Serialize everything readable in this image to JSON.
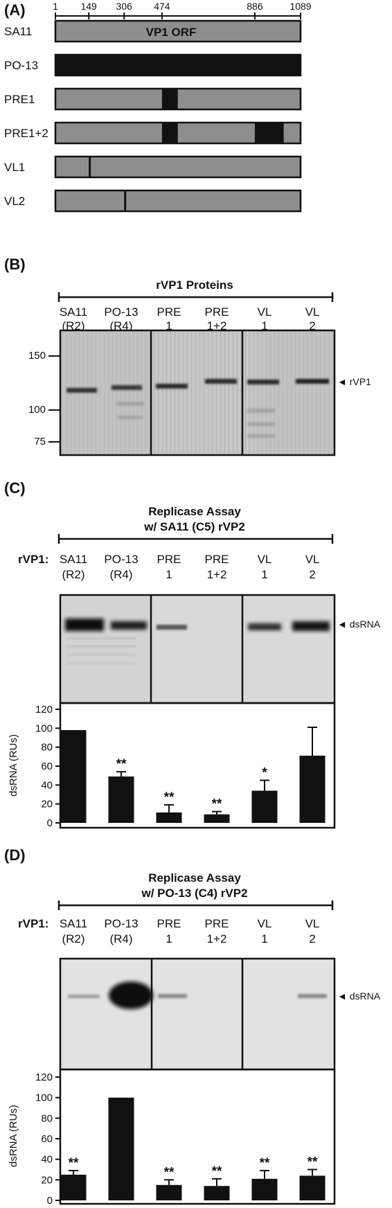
{
  "panelA": {
    "label": "(A)",
    "ruler_positions": [
      1,
      149,
      306,
      474,
      886,
      1089
    ],
    "orf_label": "VP1 ORF",
    "constructs": [
      {
        "name": "SA11",
        "po13_segments": []
      },
      {
        "name": "PO-13",
        "po13_segments": [
          [
            1,
            1089
          ]
        ]
      },
      {
        "name": "PRE1",
        "po13_segments": [
          [
            474,
            544
          ]
        ]
      },
      {
        "name": "PRE1+2",
        "po13_segments": [
          [
            474,
            544
          ],
          [
            886,
            1014
          ]
        ]
      },
      {
        "name": "VL1",
        "po13_segments": [
          [
            149,
            155
          ]
        ]
      },
      {
        "name": "VL2",
        "po13_segments": [
          [
            306,
            312
          ]
        ]
      }
    ]
  },
  "panelB": {
    "label": "(B)",
    "title": "rVP1 Proteins",
    "lanes": [
      [
        "SA11",
        "(R2)"
      ],
      [
        "PO-13",
        "(R4)"
      ],
      [
        "PRE",
        "1"
      ],
      [
        "PRE",
        "1+2"
      ],
      [
        "VL",
        "1"
      ],
      [
        "VL",
        "2"
      ]
    ],
    "mw_markers": [
      "150",
      "100",
      "75"
    ],
    "band_label": "◄ rVP1"
  },
  "panelC": {
    "label": "(C)",
    "title_line1": "Replicase Assay",
    "title_line2": "w/ SA11 (C5) rVP2",
    "row_label": "rVP1:",
    "lanes": [
      [
        "SA11",
        "(R2)"
      ],
      [
        "PO-13",
        "(R4)"
      ],
      [
        "PRE",
        "1"
      ],
      [
        "PRE",
        "1+2"
      ],
      [
        "VL",
        "1"
      ],
      [
        "VL",
        "2"
      ]
    ],
    "band_label": "◄ dsRNA",
    "chart_data": {
      "type": "bar",
      "categories": [
        "SA11",
        "PO-13",
        "PRE1",
        "PRE1+2",
        "VL1",
        "VL2"
      ],
      "values": [
        98,
        49,
        11,
        9,
        34,
        71
      ],
      "errors": [
        0,
        5,
        8,
        3,
        11,
        30
      ],
      "significance": [
        "",
        "**",
        "**",
        "**",
        "*",
        ""
      ],
      "ylabel": "dsRNA (RUs)",
      "ylim": [
        0,
        120
      ],
      "yticks": [
        "0",
        "20",
        "40",
        "60",
        "80",
        "100",
        "120"
      ]
    }
  },
  "panelD": {
    "label": "(D)",
    "title_line1": "Replicase Assay",
    "title_line2": "w/ PO-13 (C4) rVP2",
    "row_label": "rVP1:",
    "lanes": [
      [
        "SA11",
        "(R2)"
      ],
      [
        "PO-13",
        "(R4)"
      ],
      [
        "PRE",
        "1"
      ],
      [
        "PRE",
        "1+2"
      ],
      [
        "VL",
        "1"
      ],
      [
        "VL",
        "2"
      ]
    ],
    "band_label": "◄ dsRNA",
    "chart_data": {
      "type": "bar",
      "categories": [
        "SA11",
        "PO-13",
        "PRE1",
        "PRE1+2",
        "VL1",
        "VL2"
      ],
      "values": [
        25,
        100,
        15,
        14,
        21,
        24
      ],
      "errors": [
        4,
        0,
        5,
        7,
        8,
        6
      ],
      "significance": [
        "**",
        "",
        "**",
        "**",
        "**",
        "**"
      ],
      "ylabel": "dsRNA (RUs)",
      "ylim": [
        0,
        120
      ],
      "yticks": [
        "0",
        "20",
        "40",
        "60",
        "80",
        "100",
        "120"
      ]
    }
  },
  "colors": {
    "wt": "#8e8e8e",
    "swap": "#111111",
    "gel_bg": "#c2c2c2",
    "autorad_bg": "#dcdcdc"
  }
}
